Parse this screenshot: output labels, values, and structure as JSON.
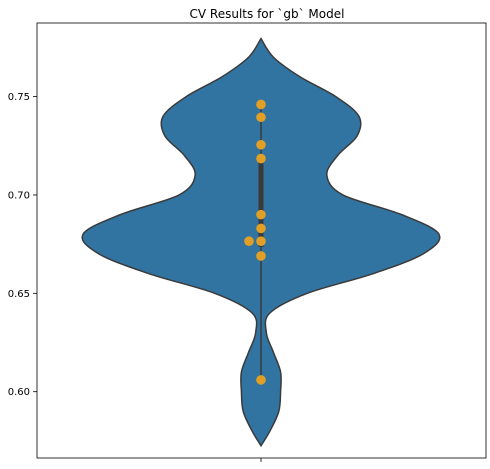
{
  "chart_data": {
    "type": "violin",
    "title": "CV Results for `gb` Model",
    "xlabel": "",
    "ylabel": "",
    "ylim": [
      0.5663,
      0.7874
    ],
    "yticks": [
      0.6,
      0.65,
      0.7,
      0.75
    ],
    "ytick_labels": [
      "0.60",
      "0.65",
      "0.70",
      "0.75"
    ],
    "grid": false,
    "series": [
      {
        "name": "gb",
        "violin_color": "#3274a1",
        "edge_color": "#3a3a3a",
        "point_color": "#e1a025",
        "min": 0.5725,
        "max": 0.7795,
        "density_profile": [
          [
            0.5725,
            0.0
          ],
          [
            0.58,
            0.05
          ],
          [
            0.59,
            0.1
          ],
          [
            0.6,
            0.11
          ],
          [
            0.61,
            0.11
          ],
          [
            0.62,
            0.07
          ],
          [
            0.63,
            0.03
          ],
          [
            0.64,
            0.05
          ],
          [
            0.65,
            0.26
          ],
          [
            0.66,
            0.63
          ],
          [
            0.67,
            0.91
          ],
          [
            0.68,
            1.0
          ],
          [
            0.69,
            0.79
          ],
          [
            0.7,
            0.46
          ],
          [
            0.71,
            0.37
          ],
          [
            0.72,
            0.43
          ],
          [
            0.73,
            0.54
          ],
          [
            0.74,
            0.55
          ],
          [
            0.75,
            0.42
          ],
          [
            0.76,
            0.22
          ],
          [
            0.77,
            0.07
          ],
          [
            0.7795,
            0.0
          ]
        ],
        "quartiles": [
          0.6736,
          0.7175
        ],
        "whisker": [
          0.606,
          0.746
        ],
        "points": [
          0.746,
          0.7395,
          0.7255,
          0.7185,
          0.69,
          0.683,
          0.6765,
          0.6765,
          0.669,
          0.606
        ]
      }
    ]
  }
}
